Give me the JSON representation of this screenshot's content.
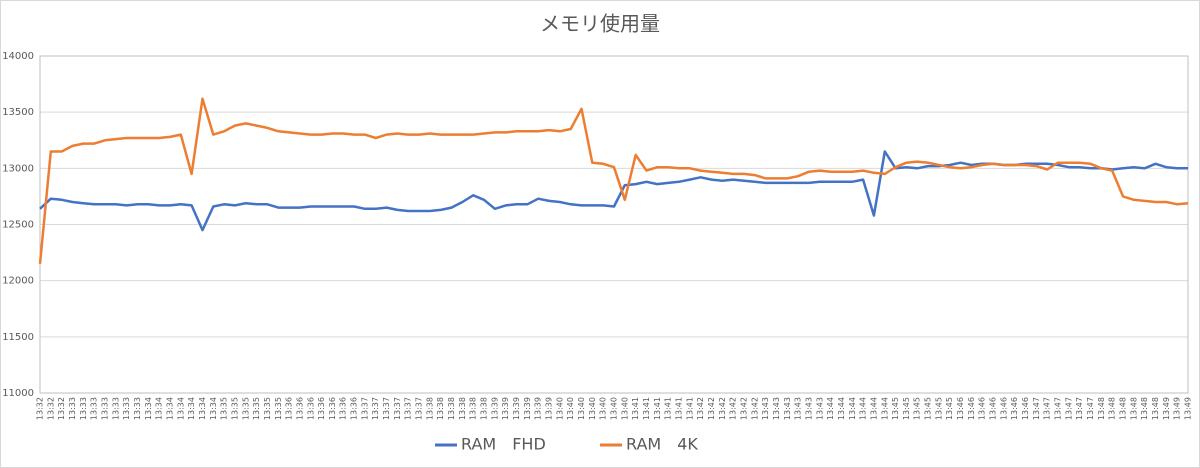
{
  "chart_data": {
    "type": "line",
    "title": "メモリ使用量",
    "categories": [
      "13:32",
      "13:32",
      "13:32",
      "13:33",
      "13:33",
      "13:33",
      "13:33",
      "13:33",
      "13:33",
      "13:33",
      "13:34",
      "13:34",
      "13:34",
      "13:34",
      "13:34",
      "13:34",
      "13:34",
      "13:35",
      "13:35",
      "13:35",
      "13:35",
      "13:35",
      "13:35",
      "13:36",
      "13:36",
      "13:36",
      "13:36",
      "13:36",
      "13:36",
      "13:36",
      "13:37",
      "13:37",
      "13:37",
      "13:37",
      "13:37",
      "13:37",
      "13:38",
      "13:38",
      "13:38",
      "13:38",
      "13:38",
      "13:38",
      "13:39",
      "13:39",
      "13:39",
      "13:39",
      "13:39",
      "13:39",
      "13:40",
      "13:40",
      "13:40",
      "13:40",
      "13:40",
      "13:40",
      "13:40",
      "13:41",
      "13:41",
      "13:41",
      "13:41",
      "13:41",
      "13:41",
      "13:42",
      "13:42",
      "13:42",
      "13:42",
      "13:42",
      "13:42",
      "13:43",
      "13:43",
      "13:43",
      "13:43",
      "13:43",
      "13:43",
      "13:44",
      "13:44",
      "13:44",
      "13:44",
      "13:44",
      "13:44",
      "13:45",
      "13:45",
      "13:45",
      "13:45",
      "13:45",
      "13:45",
      "13:46",
      "13:46",
      "13:46",
      "13:46",
      "13:46",
      "13:46",
      "13:46",
      "13:47",
      "13:47",
      "13:47",
      "13:47",
      "13:47",
      "13:47",
      "13:48",
      "13:48",
      "13:48",
      "13:48",
      "13:48",
      "13:48",
      "13:49",
      "13:49",
      "13:49"
    ],
    "series": [
      {
        "name": "RAM　FHD",
        "color": "#4472c4",
        "values": [
          12640,
          12730,
          12720,
          12700,
          12690,
          12680,
          12680,
          12680,
          12670,
          12680,
          12680,
          12670,
          12670,
          12680,
          12670,
          12450,
          12660,
          12680,
          12670,
          12690,
          12680,
          12680,
          12650,
          12650,
          12650,
          12660,
          12660,
          12660,
          12660,
          12660,
          12640,
          12640,
          12650,
          12630,
          12620,
          12620,
          12620,
          12630,
          12650,
          12700,
          12760,
          12720,
          12640,
          12670,
          12680,
          12680,
          12730,
          12710,
          12700,
          12680,
          12670,
          12670,
          12670,
          12660,
          12850,
          12860,
          12880,
          12860,
          12870,
          12880,
          12900,
          12920,
          12900,
          12890,
          12900,
          12890,
          12880,
          12870,
          12870,
          12870,
          12870,
          12870,
          12880,
          12880,
          12880,
          12880,
          12900,
          12580,
          13150,
          13000,
          13010,
          13000,
          13020,
          13020,
          13030,
          13050,
          13030,
          13040,
          13040,
          13030,
          13030,
          13040,
          13040,
          13040,
          13030,
          13010,
          13010,
          13000,
          13000,
          12990,
          13000,
          13010,
          13000,
          13040,
          13010,
          13000,
          13000
        ]
      },
      {
        "name": "RAM　4K",
        "color": "#ed7d31",
        "values": [
          12150,
          13150,
          13150,
          13200,
          13220,
          13220,
          13250,
          13260,
          13270,
          13270,
          13270,
          13270,
          13280,
          13300,
          12950,
          13620,
          13300,
          13330,
          13380,
          13400,
          13380,
          13360,
          13330,
          13320,
          13310,
          13300,
          13300,
          13310,
          13310,
          13300,
          13300,
          13270,
          13300,
          13310,
          13300,
          13300,
          13310,
          13300,
          13300,
          13300,
          13300,
          13310,
          13320,
          13320,
          13330,
          13330,
          13330,
          13340,
          13330,
          13350,
          13530,
          13050,
          13040,
          13010,
          12720,
          13120,
          12980,
          13010,
          13010,
          13000,
          13000,
          12980,
          12970,
          12960,
          12950,
          12950,
          12940,
          12910,
          12910,
          12910,
          12930,
          12970,
          12980,
          12970,
          12970,
          12970,
          12980,
          12960,
          12950,
          13010,
          13050,
          13060,
          13050,
          13030,
          13010,
          13000,
          13010,
          13030,
          13040,
          13030,
          13030,
          13030,
          13020,
          12990,
          13050,
          13050,
          13050,
          13040,
          13000,
          12980,
          12750,
          12720,
          12710,
          12700,
          12700,
          12680,
          12690
        ]
      }
    ],
    "ylim": [
      11000,
      14000
    ],
    "yticks": [
      11000,
      11500,
      12000,
      12500,
      13000,
      13500,
      14000
    ],
    "grid": true,
    "legend": "bottom"
  }
}
